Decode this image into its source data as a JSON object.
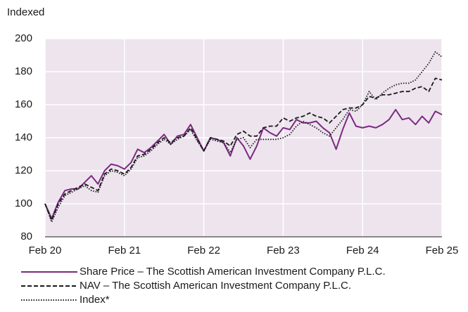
{
  "chart_data": {
    "type": "line",
    "y_label": "Indexed",
    "categories": [
      "Feb 20",
      null,
      null,
      null,
      null,
      null,
      null,
      null,
      null,
      null,
      null,
      null,
      "Feb 21",
      null,
      null,
      null,
      null,
      null,
      null,
      null,
      null,
      null,
      null,
      null,
      "Feb 22",
      null,
      null,
      null,
      null,
      null,
      null,
      null,
      null,
      null,
      null,
      null,
      "Feb 23",
      null,
      null,
      null,
      null,
      null,
      null,
      null,
      null,
      null,
      null,
      null,
      "Feb 24",
      null,
      null,
      null,
      null,
      null,
      null,
      null,
      null,
      null,
      null,
      null,
      "Feb 25"
    ],
    "series": [
      {
        "name": "Share Price – The Scottish American Investment Company P.L.C.",
        "color": "#7b2a80",
        "dash": "solid",
        "values": [
          100,
          91,
          101,
          108,
          109,
          109,
          113,
          117,
          112,
          120,
          124,
          123,
          121,
          125,
          133,
          131,
          134,
          138,
          142,
          136,
          141,
          142,
          148,
          140,
          132,
          140,
          139,
          137,
          129,
          140,
          135,
          127,
          135,
          146,
          143,
          141,
          146,
          145,
          151,
          149,
          149,
          150,
          146,
          143,
          133,
          145,
          155,
          147,
          146,
          147,
          146,
          148,
          151,
          157,
          151,
          152,
          148,
          153,
          149,
          156,
          154
        ]
      },
      {
        "name": "NAV – The Scottish American Investment Company P.L.C.",
        "color": "#1a1a1a",
        "dash": "dashed",
        "values": [
          100,
          90,
          100,
          106,
          108,
          110,
          112,
          110,
          108,
          118,
          121,
          120,
          118,
          122,
          129,
          130,
          133,
          137,
          140,
          137,
          140,
          141,
          146,
          139,
          132,
          140,
          139,
          138,
          135,
          142,
          144,
          141,
          141,
          146,
          147,
          147,
          152,
          150,
          152,
          153,
          155,
          153,
          152,
          149,
          153,
          157,
          158,
          158,
          160,
          165,
          164,
          166,
          166,
          167,
          168,
          168,
          170,
          171,
          168,
          176,
          175
        ]
      },
      {
        "name": "Index*",
        "color": "#1a1a1a",
        "dash": "dotted",
        "values": [
          100,
          89,
          98,
          105,
          107,
          109,
          111,
          108,
          107,
          117,
          120,
          119,
          117,
          121,
          128,
          129,
          132,
          136,
          139,
          136,
          139,
          141,
          145,
          138,
          132,
          139,
          138,
          137,
          131,
          139,
          140,
          134,
          139,
          139,
          139,
          139,
          140,
          142,
          147,
          150,
          148,
          146,
          143,
          141,
          146,
          151,
          157,
          156,
          160,
          168,
          163,
          167,
          170,
          172,
          173,
          173,
          175,
          180,
          185,
          192,
          189
        ]
      }
    ],
    "ylim": [
      80,
      200
    ],
    "yticks": [
      80,
      100,
      120,
      140,
      160,
      180,
      200
    ],
    "grid": true,
    "plot_background": "#ede4ee"
  }
}
